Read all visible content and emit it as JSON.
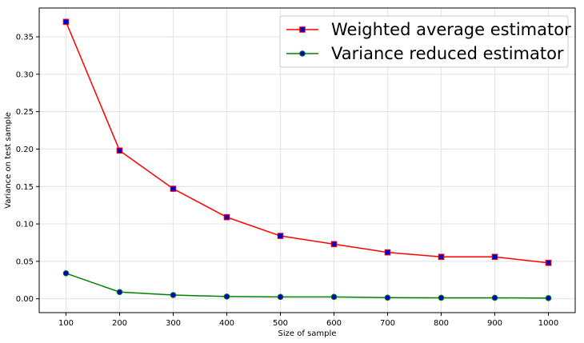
{
  "chart_data": {
    "type": "line",
    "x": [
      100,
      200,
      300,
      400,
      500,
      600,
      700,
      800,
      900,
      1000
    ],
    "xlabel": "Size of sample",
    "ylabel": "Variance on test sample",
    "xlim": [
      50,
      1050
    ],
    "ylim": [
      -0.0185,
      0.3885
    ],
    "xticks": [
      100,
      200,
      300,
      400,
      500,
      600,
      700,
      800,
      900,
      1000
    ],
    "yticks": [
      0.0,
      0.05,
      0.1,
      0.15,
      0.2,
      0.25,
      0.3,
      0.35
    ],
    "ytick_labels": [
      "0.00",
      "0.05",
      "0.10",
      "0.15",
      "0.20",
      "0.25",
      "0.30",
      "0.35"
    ],
    "grid": true,
    "legend_position": "top-right",
    "series": [
      {
        "name": "Weighted average estimator",
        "values": [
          0.37,
          0.198,
          0.147,
          0.109,
          0.084,
          0.073,
          0.062,
          0.056,
          0.056,
          0.048
        ],
        "color": "#ff0000",
        "marker": "square",
        "marker_face": "#0000cc",
        "marker_edge": "#ff0000"
      },
      {
        "name": "Variance reduced estimator",
        "values": [
          0.034,
          0.009,
          0.005,
          0.003,
          0.0025,
          0.0025,
          0.0015,
          0.0013,
          0.0013,
          0.0009
        ],
        "color": "#008000",
        "marker": "circle",
        "marker_face": "#0000cc",
        "marker_edge": "#008000"
      }
    ]
  }
}
